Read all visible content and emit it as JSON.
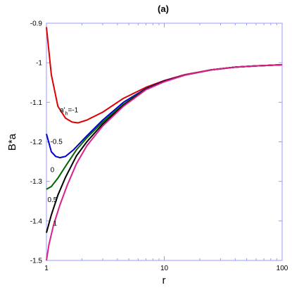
{
  "chart_data": {
    "type": "line",
    "title": "(a)",
    "xlabel": "r",
    "ylabel": "B*a",
    "xscale": "log",
    "xlim": [
      1,
      100
    ],
    "ylim": [
      -1.5,
      -0.9
    ],
    "xticks": [
      {
        "value": 1,
        "label": "1"
      },
      {
        "value": 10,
        "label": "10"
      },
      {
        "value": 100,
        "label": "100"
      }
    ],
    "yticks": [
      {
        "value": -0.9,
        "label": "-0.9"
      },
      {
        "value": -1.0,
        "label": "-1"
      },
      {
        "value": -1.1,
        "label": "-1.1"
      },
      {
        "value": -1.2,
        "label": "-1.2"
      },
      {
        "value": -1.3,
        "label": "-1.3"
      },
      {
        "value": -1.4,
        "label": "-1.4"
      },
      {
        "value": -1.5,
        "label": "-1.5"
      }
    ],
    "grid": false,
    "frame_color": "#9999ff",
    "series": [
      {
        "label": "a'_h=-1",
        "label_main": "a'",
        "label_sub": "h",
        "label_rest": "=-1",
        "color": "#dd0000",
        "label_at": [
          1.3,
          -1.125
        ],
        "points": [
          [
            1.0,
            -0.91
          ],
          [
            1.1,
            -1.03
          ],
          [
            1.25,
            -1.11
          ],
          [
            1.45,
            -1.14
          ],
          [
            1.65,
            -1.15
          ],
          [
            1.85,
            -1.152
          ],
          [
            2.2,
            -1.145
          ],
          [
            3.0,
            -1.125
          ],
          [
            4.5,
            -1.09
          ],
          [
            7,
            -1.062
          ],
          [
            10,
            -1.045
          ],
          [
            15,
            -1.03
          ],
          [
            25,
            -1.018
          ],
          [
            40,
            -1.011
          ],
          [
            60,
            -1.008
          ],
          [
            100,
            -1.005
          ]
        ]
      },
      {
        "label": "-0.5",
        "color": "#0000cc",
        "label_at": [
          1.08,
          -1.205
        ],
        "points": [
          [
            1.0,
            -1.18
          ],
          [
            1.1,
            -1.225
          ],
          [
            1.2,
            -1.237
          ],
          [
            1.3,
            -1.24
          ],
          [
            1.45,
            -1.237
          ],
          [
            1.7,
            -1.22
          ],
          [
            2.2,
            -1.185
          ],
          [
            3.0,
            -1.145
          ],
          [
            4.5,
            -1.1
          ],
          [
            7,
            -1.065
          ],
          [
            10,
            -1.046
          ],
          [
            15,
            -1.031
          ],
          [
            25,
            -1.018
          ],
          [
            40,
            -1.011
          ],
          [
            60,
            -1.008
          ],
          [
            100,
            -1.005
          ]
        ]
      },
      {
        "label": "0",
        "color": "#006600",
        "label_at": [
          1.08,
          -1.277
        ],
        "points": [
          [
            1.0,
            -1.32
          ],
          [
            1.1,
            -1.313
          ],
          [
            1.25,
            -1.292
          ],
          [
            1.45,
            -1.262
          ],
          [
            1.8,
            -1.22
          ],
          [
            2.2,
            -1.19
          ],
          [
            3.0,
            -1.15
          ],
          [
            4.5,
            -1.105
          ],
          [
            7,
            -1.066
          ],
          [
            10,
            -1.047
          ],
          [
            15,
            -1.031
          ],
          [
            25,
            -1.018
          ],
          [
            40,
            -1.011
          ],
          [
            60,
            -1.008
          ],
          [
            100,
            -1.005
          ]
        ]
      },
      {
        "label": "0.5",
        "color": "#000000",
        "label_at": [
          1.02,
          -1.352
        ],
        "points": [
          [
            1.0,
            -1.43
          ],
          [
            1.1,
            -1.385
          ],
          [
            1.25,
            -1.335
          ],
          [
            1.45,
            -1.29
          ],
          [
            1.8,
            -1.235
          ],
          [
            2.2,
            -1.2
          ],
          [
            3.0,
            -1.155
          ],
          [
            4.5,
            -1.108
          ],
          [
            7,
            -1.067
          ],
          [
            10,
            -1.047
          ],
          [
            15,
            -1.031
          ],
          [
            25,
            -1.018
          ],
          [
            40,
            -1.011
          ],
          [
            60,
            -1.008
          ],
          [
            100,
            -1.005
          ]
        ]
      },
      {
        "label": "1",
        "color": "#dd1f8e",
        "label_at": [
          1.14,
          -1.412
        ],
        "points": [
          [
            1.0,
            -1.5
          ],
          [
            1.05,
            -1.46
          ],
          [
            1.15,
            -1.41
          ],
          [
            1.3,
            -1.36
          ],
          [
            1.5,
            -1.31
          ],
          [
            1.8,
            -1.255
          ],
          [
            2.2,
            -1.21
          ],
          [
            3.0,
            -1.16
          ],
          [
            4.5,
            -1.11
          ],
          [
            7,
            -1.068
          ],
          [
            10,
            -1.048
          ],
          [
            15,
            -1.031
          ],
          [
            25,
            -1.018
          ],
          [
            40,
            -1.011
          ],
          [
            60,
            -1.008
          ],
          [
            100,
            -1.005
          ]
        ]
      }
    ]
  }
}
